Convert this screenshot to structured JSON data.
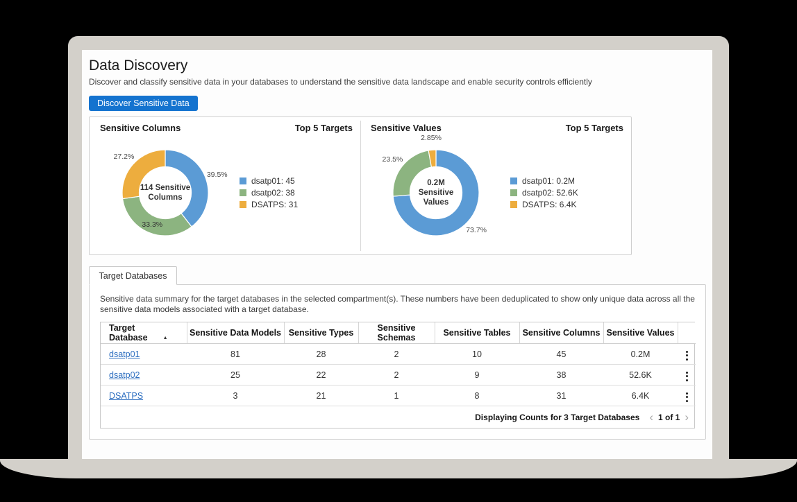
{
  "page": {
    "title": "Data Discovery",
    "subtitle": "Discover and classify sensitive data in your databases to understand the sensitive data landscape and enable security controls efficiently",
    "primary_button": "Discover Sensitive Data"
  },
  "colors": {
    "primary_button": "#1473CF",
    "link": "#2E6FC0",
    "chart_blue": "#5B9BD5",
    "chart_green": "#8CB480",
    "chart_orange": "#EDAD3E"
  },
  "chart_data": [
    {
      "type": "pie",
      "title": "Sensitive Columns",
      "subtitle": "Top 5 Targets",
      "center_lines": [
        "114 Sensitive",
        "Columns"
      ],
      "total": 114,
      "legend_position": "right",
      "slices": [
        {
          "name": "dsatp01",
          "value_label": "45",
          "value": 45,
          "percent": 39.5,
          "percent_label": "39.5%",
          "color": "#5B9BD5",
          "label_inside": false
        },
        {
          "name": "dsatp02",
          "value_label": "38",
          "value": 38,
          "percent": 33.3,
          "percent_label": "33.3%",
          "color": "#8CB480",
          "label_inside": true
        },
        {
          "name": "DSATPS",
          "value_label": "31",
          "value": 31,
          "percent": 27.2,
          "percent_label": "27.2%",
          "color": "#EDAD3E",
          "label_inside": false
        }
      ]
    },
    {
      "type": "pie",
      "title": "Sensitive Values",
      "subtitle": "Top 5 Targets",
      "center_lines": [
        "0.2M",
        "Sensitive",
        "Values"
      ],
      "total_label": "0.2M",
      "legend_position": "right",
      "slices": [
        {
          "name": "dsatp01",
          "value_label": "0.2M",
          "percent": 73.7,
          "percent_label": "73.7%",
          "color": "#5B9BD5",
          "label_inside": false
        },
        {
          "name": "dsatp02",
          "value_label": "52.6K",
          "percent": 23.5,
          "percent_label": "23.5%",
          "color": "#8CB480",
          "label_inside": false
        },
        {
          "name": "DSATPS",
          "value_label": "6.4K",
          "percent": 2.85,
          "percent_label": "2.85%",
          "color": "#EDAD3E",
          "label_inside": false
        }
      ]
    }
  ],
  "tabs": [
    {
      "label": "Target Databases",
      "active": true
    }
  ],
  "table_section": {
    "description": "Sensitive data summary for the target databases in the selected compartment(s). These numbers have been deduplicated to show only unique data across all the sensitive data models associated with a target database.",
    "columns": [
      "Target Database",
      "Sensitive Data Models",
      "Sensitive Types",
      "Sensitive Schemas",
      "Sensitive Tables",
      "Sensitive Columns",
      "Sensitive Values"
    ],
    "sort_column": "Target Database",
    "sort_direction": "ascending",
    "rows": [
      {
        "target": "dsatp01",
        "values": [
          "81",
          "28",
          "2",
          "10",
          "45",
          "0.2M"
        ]
      },
      {
        "target": "dsatp02",
        "values": [
          "25",
          "22",
          "2",
          "9",
          "38",
          "52.6K"
        ]
      },
      {
        "target": "DSATPS",
        "values": [
          "3",
          "21",
          "1",
          "8",
          "31",
          "6.4K"
        ]
      }
    ],
    "footer_summary": "Displaying Counts for 3 Target Databases",
    "pagination": {
      "current": "1 of 1",
      "prev": "‹",
      "next": "›"
    }
  }
}
